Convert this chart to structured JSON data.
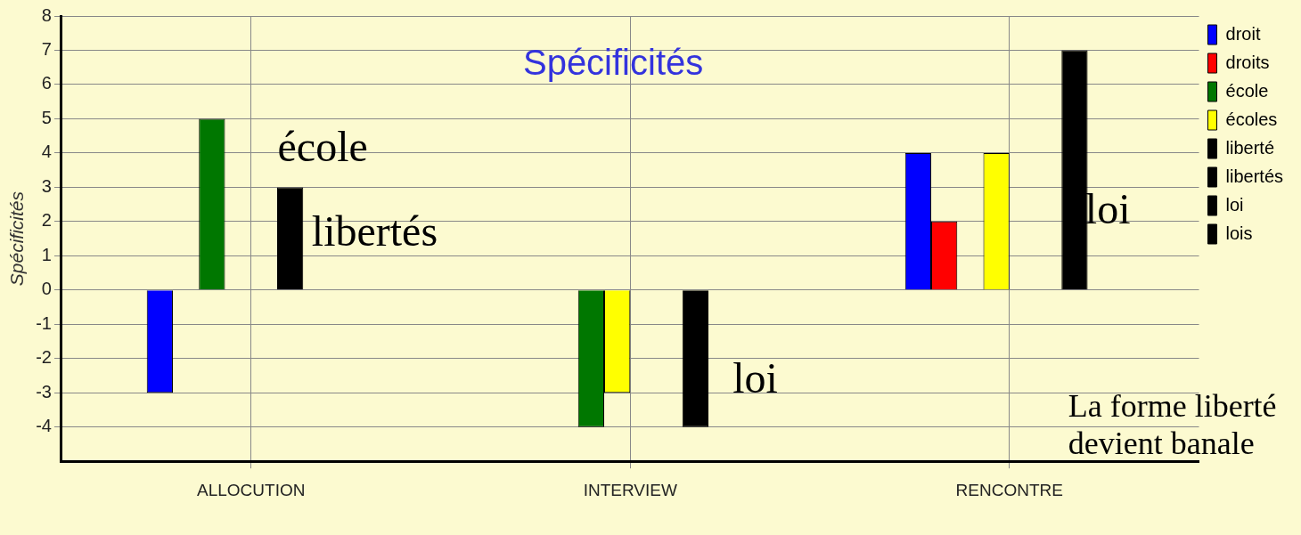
{
  "chart_data": {
    "type": "bar",
    "title": "Spécificités",
    "ylabel": "Spécificités",
    "categories": [
      "ALLOCUTION",
      "INTERVIEW",
      "RENCONTRE"
    ],
    "series": [
      {
        "name": "droit",
        "color": "#0000ff",
        "values": [
          -3,
          0,
          4
        ]
      },
      {
        "name": "droits",
        "color": "#ff0000",
        "values": [
          0,
          0,
          2
        ]
      },
      {
        "name": "école",
        "color": "#007700",
        "values": [
          5,
          -4,
          0
        ]
      },
      {
        "name": "écoles",
        "color": "#ffff00",
        "values": [
          0,
          -3,
          4
        ]
      },
      {
        "name": "liberté",
        "color": "#000000",
        "values": [
          0,
          0,
          0
        ]
      },
      {
        "name": "libertés",
        "color": "#000000",
        "values": [
          3,
          0,
          0
        ]
      },
      {
        "name": "loi",
        "color": "#000000",
        "values": [
          0,
          -4,
          7
        ]
      },
      {
        "name": "lois",
        "color": "#000000",
        "values": [
          0,
          0,
          0
        ]
      }
    ],
    "ylim": [
      -5,
      8
    ],
    "yticks": [
      -4,
      -3,
      -2,
      -1,
      0,
      1,
      2,
      3,
      4,
      5,
      6,
      7,
      8
    ],
    "grid": true,
    "legend": "top right",
    "annotations": [
      "école",
      "libertés",
      "loi",
      "loi",
      "La forme liberté devient banale"
    ]
  }
}
